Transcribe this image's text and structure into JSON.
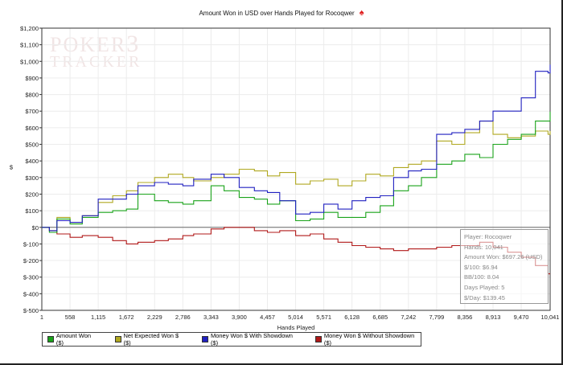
{
  "chart_data": {
    "type": "line",
    "title": "Amount Won in USD over Hands Played for Rocoqwer",
    "xlabel": "Hands Played",
    "ylabel": "$",
    "xlim": [
      1,
      10041
    ],
    "ylim": [
      -500,
      1200
    ],
    "x_ticks": [
      "1",
      "558",
      "1,115",
      "1,672",
      "2,229",
      "2,786",
      "3,343",
      "3,900",
      "4,457",
      "5,014",
      "5,571",
      "6,128",
      "6,685",
      "7,242",
      "7,799",
      "8,356",
      "8,913",
      "9,470",
      "10,041"
    ],
    "y_ticks": [
      "$-500",
      "$-400",
      "$-300",
      "$-200",
      "$-100",
      "$0",
      "$100",
      "$200",
      "$300",
      "$400",
      "$500",
      "$600",
      "$700",
      "$800",
      "$900",
      "$1,000",
      "$1,100",
      "$1,200"
    ],
    "y_values": [
      -500,
      -400,
      -300,
      -200,
      -100,
      0,
      100,
      200,
      300,
      400,
      500,
      600,
      700,
      800,
      900,
      1000,
      1100,
      1200
    ],
    "grid": true,
    "legend": "bottom",
    "series": [
      {
        "name": "Amount Won ($)",
        "color": "#1aa31a",
        "points": [
          [
            1,
            0
          ],
          [
            150,
            -30
          ],
          [
            300,
            50
          ],
          [
            558,
            20
          ],
          [
            800,
            60
          ],
          [
            1115,
            90
          ],
          [
            1400,
            100
          ],
          [
            1672,
            110
          ],
          [
            1900,
            200
          ],
          [
            2229,
            160
          ],
          [
            2500,
            150
          ],
          [
            2786,
            140
          ],
          [
            3000,
            160
          ],
          [
            3343,
            250
          ],
          [
            3600,
            220
          ],
          [
            3900,
            180
          ],
          [
            4200,
            170
          ],
          [
            4457,
            140
          ],
          [
            4700,
            160
          ],
          [
            5014,
            40
          ],
          [
            5300,
            50
          ],
          [
            5571,
            90
          ],
          [
            5850,
            60
          ],
          [
            6128,
            60
          ],
          [
            6400,
            90
          ],
          [
            6685,
            130
          ],
          [
            6950,
            220
          ],
          [
            7242,
            250
          ],
          [
            7500,
            300
          ],
          [
            7799,
            380
          ],
          [
            8100,
            400
          ],
          [
            8356,
            440
          ],
          [
            8650,
            420
          ],
          [
            8913,
            500
          ],
          [
            9200,
            530
          ],
          [
            9470,
            560
          ],
          [
            9750,
            640
          ],
          [
            10000,
            640
          ],
          [
            10041,
            697
          ]
        ]
      },
      {
        "name": "Net Expected Won $ ($)",
        "color": "#b0a820",
        "points": [
          [
            1,
            0
          ],
          [
            150,
            -20
          ],
          [
            300,
            60
          ],
          [
            558,
            30
          ],
          [
            800,
            70
          ],
          [
            1115,
            150
          ],
          [
            1400,
            190
          ],
          [
            1672,
            220
          ],
          [
            1900,
            270
          ],
          [
            2229,
            300
          ],
          [
            2500,
            320
          ],
          [
            2786,
            300
          ],
          [
            3000,
            280
          ],
          [
            3343,
            300
          ],
          [
            3600,
            320
          ],
          [
            3900,
            350
          ],
          [
            4200,
            340
          ],
          [
            4457,
            310
          ],
          [
            4700,
            330
          ],
          [
            5014,
            260
          ],
          [
            5300,
            280
          ],
          [
            5571,
            290
          ],
          [
            5850,
            250
          ],
          [
            6128,
            280
          ],
          [
            6400,
            320
          ],
          [
            6685,
            310
          ],
          [
            6950,
            360
          ],
          [
            7242,
            380
          ],
          [
            7500,
            400
          ],
          [
            7799,
            520
          ],
          [
            8100,
            500
          ],
          [
            8356,
            570
          ],
          [
            8650,
            640
          ],
          [
            8913,
            560
          ],
          [
            9200,
            540
          ],
          [
            9470,
            550
          ],
          [
            9750,
            580
          ],
          [
            10000,
            560
          ],
          [
            10041,
            580
          ]
        ]
      },
      {
        "name": "Money Won $ With Showdown ($)",
        "color": "#2020c0",
        "points": [
          [
            1,
            0
          ],
          [
            150,
            -20
          ],
          [
            300,
            40
          ],
          [
            558,
            30
          ],
          [
            800,
            70
          ],
          [
            1115,
            170
          ],
          [
            1400,
            170
          ],
          [
            1672,
            200
          ],
          [
            1900,
            250
          ],
          [
            2229,
            270
          ],
          [
            2500,
            260
          ],
          [
            2786,
            250
          ],
          [
            3000,
            290
          ],
          [
            3343,
            320
          ],
          [
            3600,
            300
          ],
          [
            3900,
            240
          ],
          [
            4200,
            220
          ],
          [
            4457,
            210
          ],
          [
            4700,
            160
          ],
          [
            5014,
            80
          ],
          [
            5300,
            90
          ],
          [
            5571,
            140
          ],
          [
            5850,
            110
          ],
          [
            6128,
            160
          ],
          [
            6400,
            180
          ],
          [
            6685,
            190
          ],
          [
            6950,
            300
          ],
          [
            7242,
            340
          ],
          [
            7500,
            350
          ],
          [
            7799,
            560
          ],
          [
            8100,
            570
          ],
          [
            8356,
            590
          ],
          [
            8650,
            640
          ],
          [
            8913,
            700
          ],
          [
            9200,
            700
          ],
          [
            9470,
            780
          ],
          [
            9750,
            940
          ],
          [
            10000,
            930
          ],
          [
            10041,
            980
          ]
        ]
      },
      {
        "name": "Money Won $ Without Showdown ($)",
        "color": "#b01818",
        "points": [
          [
            1,
            0
          ],
          [
            150,
            -20
          ],
          [
            300,
            -40
          ],
          [
            558,
            -60
          ],
          [
            800,
            -50
          ],
          [
            1115,
            -60
          ],
          [
            1400,
            -80
          ],
          [
            1672,
            -100
          ],
          [
            1900,
            -90
          ],
          [
            2229,
            -80
          ],
          [
            2500,
            -70
          ],
          [
            2786,
            -50
          ],
          [
            3000,
            -40
          ],
          [
            3343,
            -10
          ],
          [
            3600,
            0
          ],
          [
            3900,
            0
          ],
          [
            4200,
            -20
          ],
          [
            4457,
            -30
          ],
          [
            4700,
            -20
          ],
          [
            5014,
            -50
          ],
          [
            5300,
            -40
          ],
          [
            5571,
            -70
          ],
          [
            5850,
            -90
          ],
          [
            6128,
            -110
          ],
          [
            6400,
            -120
          ],
          [
            6685,
            -130
          ],
          [
            6950,
            -140
          ],
          [
            7242,
            -130
          ],
          [
            7500,
            -130
          ],
          [
            7799,
            -120
          ],
          [
            8100,
            -110
          ],
          [
            8356,
            -110
          ],
          [
            8650,
            -90
          ],
          [
            8913,
            -120
          ],
          [
            9200,
            -150
          ],
          [
            9470,
            -180
          ],
          [
            9750,
            -230
          ],
          [
            10000,
            -280
          ],
          [
            10041,
            -280
          ]
        ]
      }
    ],
    "info_box": {
      "player": "Player: Rocoqwer",
      "hands": "Hands: 10,041",
      "amount_won": "Amount Won: $697.26 (USD)",
      "per100": "$/100: $6.94",
      "bb100": "BB/100: 8.04",
      "days": "Days Played: 5",
      "per_day": "$/Day: $139.45"
    }
  },
  "watermark": "POKER TRACKER 3"
}
